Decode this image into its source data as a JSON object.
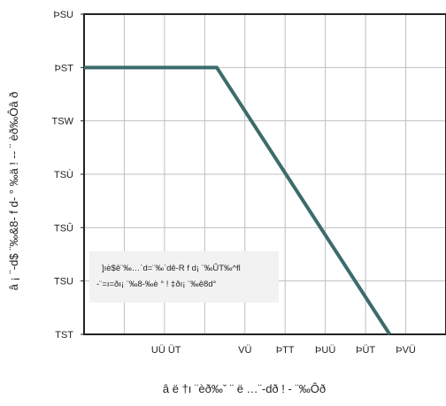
{
  "chart_data": {
    "type": "line",
    "xlabel": "â ë †ı ¨èð‰ˇ ¨ ë …¨-dð ! - ¨‰Ôð",
    "ylabel": "â ¡ ¨-d$ ¨‰&8- f d- ° ‰ä ! -- ¨ èð‰Ôâ ð",
    "x_tick_labels": [
      "UÜ ÜT",
      "VÜ",
      "ÞTT",
      "ÞUÜ",
      "ÞÜT",
      "ÞVÜ"
    ],
    "x_tick_values": [
      25.5,
      50,
      62.5,
      75,
      87.5,
      100
    ],
    "y_tick_labels": [
      "TST",
      "TSU",
      "TSÛ",
      "TSÙ",
      "TSW",
      "ÞST",
      "ÞSU"
    ],
    "y_tick_values": [
      0,
      0.2,
      0.4,
      0.6,
      0.8,
      1.0,
      1.2
    ],
    "xlim": [
      0,
      112.5
    ],
    "ylim": [
      0,
      1.2
    ],
    "grid": true,
    "series": [
      {
        "x": [
          0,
          41.25,
          95
        ],
        "y": [
          1.0,
          1.0,
          0
        ],
        "color": "#3d6b6b"
      }
    ],
    "annotation": {
      "line1": "]ıè$ê¨‰…ˋd=¨‰ˋdê-R f d¡ ¨‰ÛT‰^fl",
      "line2": "-¨=ı=ðı¡ ¨‰8-‰è ° ! ‡ðı¡ ¨‰ê8d°"
    }
  }
}
